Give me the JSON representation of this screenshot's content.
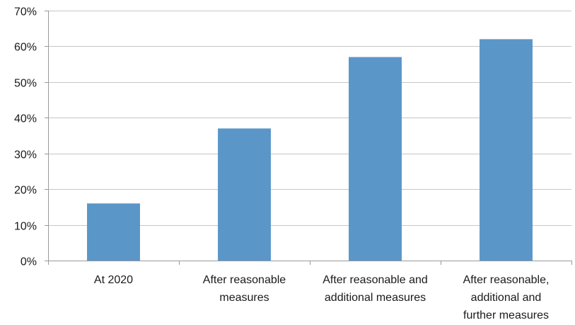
{
  "chart_data": {
    "type": "bar",
    "categories": [
      "At 2020",
      "After reasonable measures",
      "After reasonable and additional measures",
      "After reasonable, additional and further measures"
    ],
    "category_label_lines": [
      [
        "At 2020"
      ],
      [
        "After reasonable",
        "measures"
      ],
      [
        "After reasonable and",
        "additional measures"
      ],
      [
        "After reasonable,",
        "additional and",
        "further measures"
      ]
    ],
    "values": [
      16,
      37,
      57,
      62
    ],
    "ylim": [
      0,
      70
    ],
    "yticks": [
      0,
      10,
      20,
      30,
      40,
      50,
      60,
      70
    ],
    "ytick_labels": [
      "0%",
      "10%",
      "20%",
      "30%",
      "40%",
      "50%",
      "60%",
      "70%"
    ],
    "title": "",
    "xlabel": "",
    "ylabel": "",
    "grid": true,
    "legend": "none",
    "colors": {
      "bar": "#5b96c8",
      "grid": "#c6c6c6",
      "axis": "#9a9a9a",
      "text": "#1a1a1a"
    }
  }
}
